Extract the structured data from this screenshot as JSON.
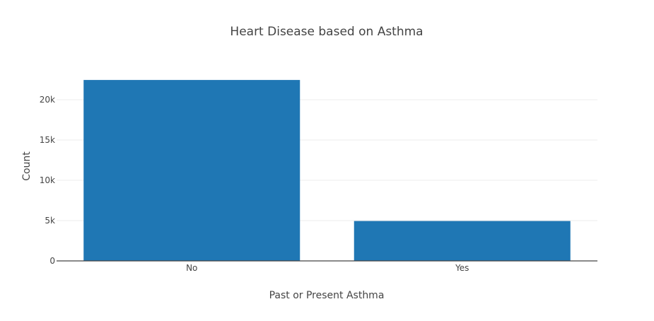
{
  "chart_data": {
    "type": "bar",
    "title": "Heart Disease based on Asthma",
    "xlabel": "Past or Present Asthma",
    "ylabel": "Count",
    "categories": [
      "No",
      "Yes"
    ],
    "values": [
      22450,
      4950
    ],
    "ylim": [
      0,
      23600
    ],
    "yticks": [
      0,
      5000,
      10000,
      15000,
      20000
    ],
    "ytick_labels": [
      "0",
      "5k",
      "10k",
      "15k",
      "20k"
    ],
    "grid": true,
    "legend": "none",
    "colors": {
      "bar": "#1f77b4",
      "grid": "#eeeeee",
      "axis": "#444444",
      "text": "#444444"
    }
  }
}
